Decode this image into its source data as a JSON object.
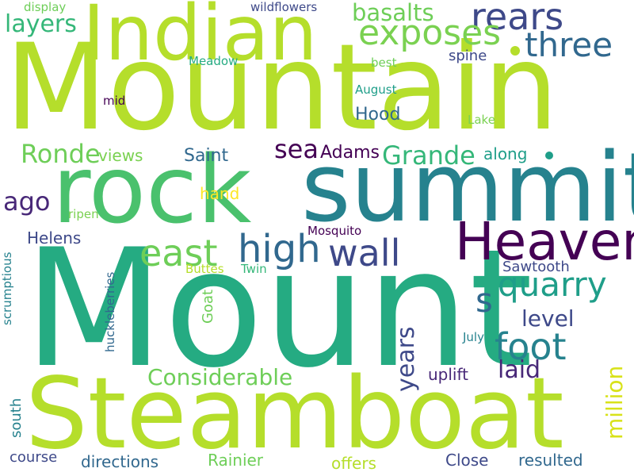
{
  "palette": {
    "lime": "#b5de2b",
    "light_green": "#6ece58",
    "green": "#35b779",
    "teal_green": "#1f9e89",
    "teal": "#26828e",
    "blue": "#31688e",
    "indigo": "#3e4989",
    "purple": "#482878",
    "dark_purple": "#440154",
    "yellow": "#fde725"
  },
  "words": [
    {
      "text": "Mountain",
      "color": "#b5de2b"
    },
    {
      "text": "Mount",
      "color": "#25ab82"
    },
    {
      "text": "Steamboat",
      "color": "#b5de2b"
    },
    {
      "text": "Indian",
      "color": "#b5de2b"
    },
    {
      "text": "rock",
      "color": "#4ac16d"
    },
    {
      "text": "summit",
      "color": "#26828e"
    },
    {
      "text": "Heaven",
      "color": "#440154"
    },
    {
      "text": "rears",
      "color": "#3e4989"
    },
    {
      "text": "exposes",
      "color": "#7ad151"
    },
    {
      "text": "three",
      "color": "#31688e"
    },
    {
      "text": "basalts",
      "color": "#6ece58"
    },
    {
      "text": "layers",
      "color": "#35b779"
    },
    {
      "text": "high",
      "color": "#31688e"
    },
    {
      "text": "east",
      "color": "#6ece58"
    },
    {
      "text": "wall",
      "color": "#3e4989"
    },
    {
      "text": "quarry",
      "color": "#1f9e89"
    },
    {
      "text": "foot",
      "color": "#26828e"
    },
    {
      "text": "s",
      "color": "#31688e"
    },
    {
      "text": "Grande",
      "color": "#35b779"
    },
    {
      "text": "Ronde",
      "color": "#6ece58"
    },
    {
      "text": "sea",
      "color": "#440154"
    },
    {
      "text": "Considerable",
      "color": "#6ece58"
    },
    {
      "text": "years",
      "color": "#3e4989"
    },
    {
      "text": "laid",
      "color": "#482878"
    },
    {
      "text": "million",
      "color": "#d8e219"
    },
    {
      "text": "level",
      "color": "#3e4989"
    },
    {
      "text": "ago",
      "color": "#482878"
    },
    {
      "text": "views",
      "color": "#7ad151"
    },
    {
      "text": "Saint",
      "color": "#31688e"
    },
    {
      "text": "Adams",
      "color": "#440154"
    },
    {
      "text": "along",
      "color": "#1f9e89"
    },
    {
      "text": "hand",
      "color": "#fde725"
    },
    {
      "text": "Helens",
      "color": "#3e4989"
    },
    {
      "text": "Hood",
      "color": "#31688e"
    },
    {
      "text": "August",
      "color": "#1f9e89"
    },
    {
      "text": "best",
      "color": "#6ece58"
    },
    {
      "text": "Meadow",
      "color": "#25ab82"
    },
    {
      "text": "spine",
      "color": "#3e4989"
    },
    {
      "text": "Lake",
      "color": "#7ad151"
    },
    {
      "text": "mid",
      "color": "#440154"
    },
    {
      "text": "display",
      "color": "#6ece58"
    },
    {
      "text": "wildflowers",
      "color": "#3e4989"
    },
    {
      "text": "ripen",
      "color": "#7ad151"
    },
    {
      "text": "Mosquito",
      "color": "#440154"
    },
    {
      "text": "Sawtooth",
      "color": "#3e4989"
    },
    {
      "text": "Buttes",
      "color": "#b5de2b"
    },
    {
      "text": "Twin",
      "color": "#35b779"
    },
    {
      "text": "Goat",
      "color": "#6ece58"
    },
    {
      "text": "huckleberries",
      "color": "#31688e"
    },
    {
      "text": "scrumptious",
      "color": "#26828e"
    },
    {
      "text": "July",
      "color": "#26828e"
    },
    {
      "text": "south",
      "color": "#26828e"
    },
    {
      "text": "uplift",
      "color": "#482878"
    },
    {
      "text": "course",
      "color": "#3e4989"
    },
    {
      "text": "directions",
      "color": "#31688e"
    },
    {
      "text": "Rainier",
      "color": "#6ece58"
    },
    {
      "text": "offers",
      "color": "#b5de2b"
    },
    {
      "text": "Close",
      "color": "#3e4989"
    },
    {
      "text": "resulted",
      "color": "#31688e"
    }
  ]
}
